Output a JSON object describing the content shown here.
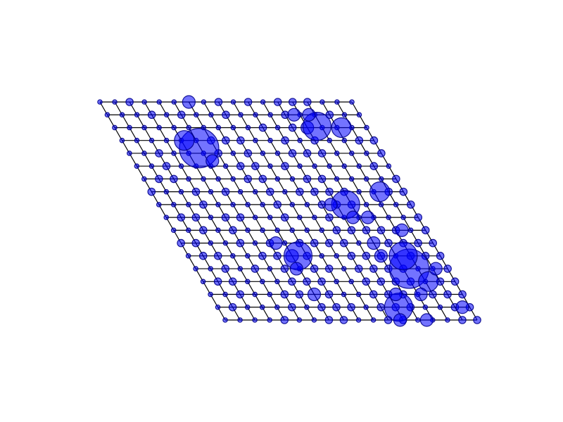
{
  "diagram": {
    "type": "skewed-lattice-bubble-plot",
    "grid_cols": 18,
    "grid_rows": 18,
    "colors": {
      "background": "#ffffff",
      "grid": "#000000",
      "node_fill": "#0000ff",
      "node_stroke": "#00008b"
    },
    "size_levels": {
      "1": "tiny",
      "2": "small",
      "3": "medium",
      "4": "large",
      "5": "very-large",
      "6": "huge"
    },
    "node_sizes": [
      [
        1,
        1,
        2,
        1,
        1,
        1,
        3,
        1,
        2,
        1,
        2,
        1,
        2,
        2,
        2,
        1,
        1,
        1
      ],
      [
        1,
        1,
        1,
        2,
        1,
        2,
        1,
        1,
        2,
        1,
        1,
        1,
        2,
        1,
        1,
        2,
        1,
        1
      ],
      [
        1,
        1,
        1,
        1,
        1,
        1,
        1,
        1,
        1,
        1,
        2,
        1,
        2,
        3,
        1,
        1,
        1,
        1
      ],
      [
        1,
        1,
        1,
        1,
        1,
        1,
        2,
        2,
        2,
        1,
        1,
        2,
        1,
        2,
        1,
        1,
        2,
        2
      ],
      [
        1,
        1,
        2,
        1,
        1,
        1,
        2,
        1,
        2,
        1,
        1,
        2,
        2,
        2,
        1,
        1,
        1,
        2
      ],
      [
        1,
        1,
        2,
        1,
        1,
        1,
        1,
        2,
        2,
        1,
        2,
        1,
        1,
        1,
        1,
        1,
        2,
        1
      ],
      [
        1,
        2,
        2,
        1,
        1,
        1,
        1,
        2,
        2,
        1,
        1,
        2,
        2,
        1,
        1,
        1,
        1,
        2
      ],
      [
        2,
        1,
        1,
        2,
        1,
        2,
        1,
        1,
        2,
        1,
        2,
        2,
        2,
        2,
        1,
        1,
        2,
        2
      ],
      [
        1,
        1,
        1,
        2,
        1,
        1,
        1,
        1,
        2,
        1,
        1,
        2,
        2,
        2,
        1,
        1,
        1,
        2
      ],
      [
        1,
        2,
        2,
        1,
        2,
        2,
        1,
        1,
        2,
        1,
        1,
        2,
        1,
        1,
        1,
        1,
        1,
        2
      ],
      [
        1,
        1,
        2,
        1,
        2,
        1,
        1,
        1,
        1,
        1,
        1,
        2,
        2,
        2,
        2,
        2,
        1,
        2
      ],
      [
        2,
        2,
        1,
        1,
        2,
        1,
        2,
        1,
        2,
        2,
        2,
        2,
        1,
        3,
        2,
        2,
        2,
        2
      ],
      [
        1,
        2,
        2,
        1,
        1,
        2,
        2,
        3,
        2,
        1,
        1,
        2,
        2,
        2,
        1,
        2,
        2,
        2
      ],
      [
        1,
        1,
        2,
        1,
        2,
        1,
        2,
        1,
        2,
        2,
        1,
        2,
        2,
        2,
        2,
        1,
        1,
        2
      ],
      [
        1,
        2,
        2,
        1,
        1,
        1,
        2,
        2,
        2,
        1,
        1,
        2,
        2,
        2,
        2,
        1,
        2,
        2
      ],
      [
        1,
        1,
        2,
        1,
        1,
        2,
        2,
        3,
        2,
        1,
        1,
        2,
        2,
        2,
        1,
        2,
        2,
        2
      ],
      [
        1,
        2,
        1,
        1,
        1,
        2,
        1,
        2,
        2,
        2,
        1,
        2,
        2,
        2,
        1,
        1,
        2,
        2
      ],
      [
        1,
        1,
        1,
        1,
        2,
        1,
        1,
        2,
        2,
        1,
        1,
        2,
        2,
        1,
        1,
        1,
        2,
        2
      ]
    ],
    "highlights": [
      {
        "col": 4.9,
        "row": 3.6,
        "level": 6
      },
      {
        "col": 4.2,
        "row": 3.0,
        "level": 4
      },
      {
        "col": 5.3,
        "row": 4.6,
        "level": 3
      },
      {
        "col": 13.7,
        "row": 1.9,
        "level": 5
      },
      {
        "col": 15.3,
        "row": 2.0,
        "level": 4
      },
      {
        "col": 12.6,
        "row": 1.0,
        "level": 3
      },
      {
        "col": 13.6,
        "row": 1.0,
        "level": 3
      },
      {
        "col": 12.6,
        "row": 8.0,
        "level": 5
      },
      {
        "col": 11.6,
        "row": 8.0,
        "level": 3
      },
      {
        "col": 12.6,
        "row": 9.0,
        "level": 3
      },
      {
        "col": 13.6,
        "row": 9.0,
        "level": 3
      },
      {
        "col": 15.4,
        "row": 7.0,
        "level": 4
      },
      {
        "col": 15.4,
        "row": 10.0,
        "level": 3
      },
      {
        "col": 7.4,
        "row": 12.0,
        "level": 5
      },
      {
        "col": 6.4,
        "row": 11.0,
        "level": 3
      },
      {
        "col": 6.8,
        "row": 13.0,
        "level": 3
      },
      {
        "col": 14.4,
        "row": 13.0,
        "level": 6
      },
      {
        "col": 14.5,
        "row": 12.0,
        "level": 5
      },
      {
        "col": 15.2,
        "row": 14.0,
        "level": 4
      },
      {
        "col": 14.2,
        "row": 15.0,
        "level": 3
      },
      {
        "col": 13.0,
        "row": 12.0,
        "level": 3
      },
      {
        "col": 12.2,
        "row": 16.0,
        "level": 5
      },
      {
        "col": 12.5,
        "row": 15.0,
        "level": 3
      },
      {
        "col": 11.8,
        "row": 17.0,
        "level": 3
      },
      {
        "col": 13.6,
        "row": 17.0,
        "level": 3
      },
      {
        "col": 16.2,
        "row": 13.0,
        "level": 3
      },
      {
        "col": 16.5,
        "row": 16.0,
        "level": 3
      }
    ]
  }
}
